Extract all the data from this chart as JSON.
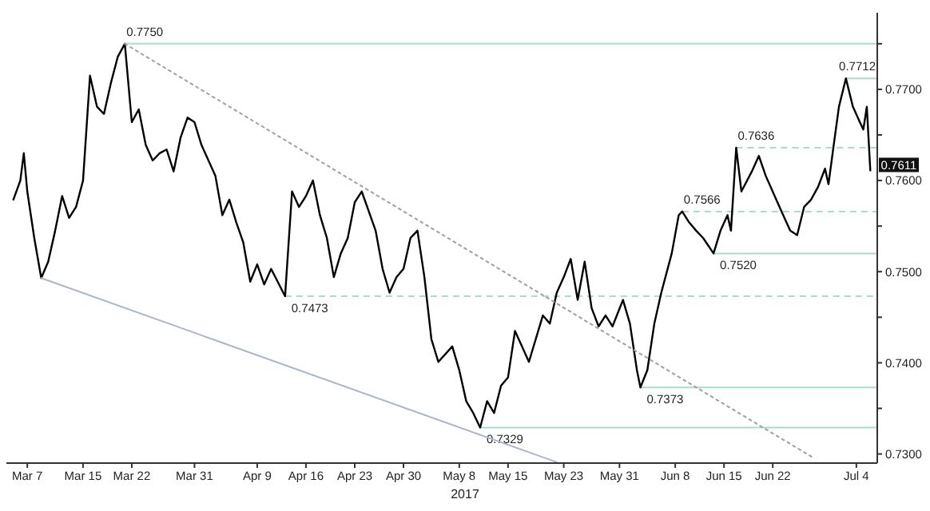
{
  "chart_data": {
    "type": "line",
    "xlim": [
      "2017-03-04",
      "2017-07-07"
    ],
    "ylim": [
      0.729,
      0.7784
    ],
    "xticks": [
      {
        "value": "2017-03-07",
        "label": "Mar 7"
      },
      {
        "value": "2017-03-15",
        "label": "Mar 15"
      },
      {
        "value": "2017-03-22",
        "label": "Mar 22"
      },
      {
        "value": "2017-03-31",
        "label": "Mar 31"
      },
      {
        "value": "2017-04-09",
        "label": "Apr 9"
      },
      {
        "value": "2017-04-16",
        "label": "Apr 16"
      },
      {
        "value": "2017-04-23",
        "label": "Apr 23"
      },
      {
        "value": "2017-04-30",
        "label": "Apr 30"
      },
      {
        "value": "2017-05-08",
        "label": "May 8"
      },
      {
        "value": "2017-05-15",
        "label": "May 15"
      },
      {
        "value": "2017-05-23",
        "label": "May 23"
      },
      {
        "value": "2017-05-31",
        "label": "May 31"
      },
      {
        "value": "2017-06-08",
        "label": "Jun 8"
      },
      {
        "value": "2017-06-15",
        "label": "Jun 15"
      },
      {
        "value": "2017-06-22",
        "label": "Jun 22"
      },
      {
        "value": "2017-07-04",
        "label": "Jul 4"
      }
    ],
    "yticks": [
      {
        "value": 0.73,
        "label": "0.7300"
      },
      {
        "value": 0.735,
        "label": null
      },
      {
        "value": 0.74,
        "label": "0.7400"
      },
      {
        "value": 0.745,
        "label": null
      },
      {
        "value": 0.75,
        "label": "0.7500"
      },
      {
        "value": 0.755,
        "label": null
      },
      {
        "value": 0.76,
        "label": "0.7600"
      },
      {
        "value": 0.765,
        "label": null
      },
      {
        "value": 0.77,
        "label": "0.7700"
      },
      {
        "value": 0.775,
        "label": null
      }
    ],
    "series": [
      {
        "color": "#000000",
        "x": [
          "2017-03-05",
          "2017-03-06",
          "2017-03-06T12:00",
          "2017-03-07",
          "2017-03-08",
          "2017-03-09",
          "2017-03-10",
          "2017-03-11",
          "2017-03-12",
          "2017-03-13",
          "2017-03-14",
          "2017-03-15",
          "2017-03-16",
          "2017-03-17",
          "2017-03-18",
          "2017-03-19",
          "2017-03-20",
          "2017-03-21",
          "2017-03-22",
          "2017-03-23",
          "2017-03-24",
          "2017-03-25",
          "2017-03-26",
          "2017-03-27",
          "2017-03-28",
          "2017-03-29",
          "2017-03-30",
          "2017-03-31",
          "2017-04-01",
          "2017-04-03",
          "2017-04-04",
          "2017-04-05",
          "2017-04-06",
          "2017-04-07",
          "2017-04-08",
          "2017-04-09",
          "2017-04-10",
          "2017-04-11",
          "2017-04-13",
          "2017-04-14",
          "2017-04-15",
          "2017-04-16",
          "2017-04-17",
          "2017-04-18",
          "2017-04-19",
          "2017-04-20",
          "2017-04-21",
          "2017-04-22",
          "2017-04-23",
          "2017-04-24",
          "2017-04-26",
          "2017-04-27",
          "2017-04-28",
          "2017-04-29",
          "2017-04-30",
          "2017-05-01",
          "2017-05-02",
          "2017-05-03",
          "2017-05-04",
          "2017-05-05",
          "2017-05-07",
          "2017-05-08",
          "2017-05-09",
          "2017-05-10",
          "2017-05-11",
          "2017-05-12",
          "2017-05-13",
          "2017-05-14",
          "2017-05-15",
          "2017-05-16",
          "2017-05-17",
          "2017-05-18",
          "2017-05-20",
          "2017-05-21",
          "2017-05-22",
          "2017-05-23",
          "2017-05-24",
          "2017-05-25",
          "2017-05-26",
          "2017-05-27",
          "2017-05-28",
          "2017-05-29",
          "2017-05-30",
          "2017-05-31T12:00",
          "2017-06-01T12:00",
          "2017-06-02T12:00",
          "2017-06-03",
          "2017-06-04",
          "2017-06-05",
          "2017-06-06",
          "2017-06-07T12:00",
          "2017-06-08T12:00",
          "2017-06-09",
          "2017-06-10",
          "2017-06-11",
          "2017-06-12",
          "2017-06-13T12:00",
          "2017-06-14T12:00",
          "2017-06-15T12:00",
          "2017-06-16",
          "2017-06-16T18:00",
          "2017-06-17T12:00",
          "2017-06-19",
          "2017-06-20",
          "2017-06-21",
          "2017-06-22T12:00",
          "2017-06-23T12:00",
          "2017-06-24T12:00",
          "2017-06-25T12:00",
          "2017-06-26T12:00",
          "2017-06-27T12:00",
          "2017-06-28T12:00",
          "2017-06-29T12:00",
          "2017-06-30",
          "2017-06-30T18:00",
          "2017-07-01T12:00",
          "2017-07-02T12:00",
          "2017-07-03T12:00",
          "2017-07-04T12:00",
          "2017-07-05",
          "2017-07-05T12:00",
          "2017-07-06"
        ],
        "values": [
          0.7579,
          0.76,
          0.763,
          0.7588,
          0.7537,
          0.7493,
          0.7511,
          0.7545,
          0.7583,
          0.7559,
          0.7571,
          0.76,
          0.7715,
          0.7681,
          0.7673,
          0.7707,
          0.7736,
          0.775,
          0.7664,
          0.7678,
          0.7639,
          0.7622,
          0.763,
          0.7634,
          0.761,
          0.7647,
          0.7669,
          0.7664,
          0.7639,
          0.7605,
          0.7562,
          0.7579,
          0.7554,
          0.7532,
          0.7489,
          0.7508,
          0.7486,
          0.7503,
          0.7473,
          0.7588,
          0.7571,
          0.7583,
          0.76,
          0.7562,
          0.7537,
          0.7494,
          0.752,
          0.7537,
          0.7576,
          0.7588,
          0.7545,
          0.7503,
          0.7477,
          0.7494,
          0.7503,
          0.7537,
          0.7545,
          0.7494,
          0.7426,
          0.7401,
          0.7418,
          0.7392,
          0.7358,
          0.7345,
          0.7329,
          0.7358,
          0.7345,
          0.7375,
          0.7384,
          0.7435,
          0.7418,
          0.7401,
          0.7452,
          0.7443,
          0.7477,
          0.7494,
          0.7514,
          0.7469,
          0.7511,
          0.746,
          0.744,
          0.7452,
          0.744,
          0.7469,
          0.7443,
          0.7392,
          0.7373,
          0.7392,
          0.7443,
          0.7477,
          0.752,
          0.7562,
          0.7566,
          0.7554,
          0.7545,
          0.7537,
          0.752,
          0.7545,
          0.7562,
          0.7545,
          0.7636,
          0.7588,
          0.761,
          0.7627,
          0.7605,
          0.7579,
          0.7562,
          0.7545,
          0.754,
          0.7571,
          0.7579,
          0.7593,
          0.7613,
          0.7596,
          0.7639,
          0.7681,
          0.7712,
          0.7681,
          0.7664,
          0.7656,
          0.7681,
          0.7611
        ]
      },
      {
        "type": "line",
        "color": "#a0a0a0",
        "line_style": "dotted",
        "x": [
          "2017-03-21",
          "2017-06-28"
        ],
        "values": [
          0.775,
          0.7295
        ]
      },
      {
        "type": "line",
        "color": "#a8b8c8",
        "line_style": "solid",
        "x": [
          "2017-03-09",
          "2017-05-22"
        ],
        "values": [
          0.7493,
          0.7291
        ]
      }
    ],
    "ref_lines": [
      {
        "axis": "y",
        "value": 0.775,
        "label": "0.7750",
        "color": "#a8dcd0",
        "line_style": "solid"
      },
      {
        "axis": "y",
        "value": 0.7712,
        "label": "0.7712",
        "color": "#a8dcd0",
        "line_style": "solid"
      },
      {
        "axis": "y",
        "value": 0.7636,
        "label": "0.7636",
        "color": "#a8dcd0",
        "line_style": "dashed"
      },
      {
        "axis": "y",
        "value": 0.7566,
        "label": "0.7566",
        "color": "#a8dcd0",
        "line_style": "dashed"
      },
      {
        "axis": "y",
        "value": 0.752,
        "label": "0.7520",
        "color": "#a8dcd0",
        "line_style": "solid"
      },
      {
        "axis": "y",
        "value": 0.7473,
        "label": "0.7473",
        "color": "#a8dcd0",
        "line_style": "dashed"
      },
      {
        "axis": "y",
        "value": 0.7373,
        "label": "0.7373",
        "color": "#a8dcd0",
        "line_style": "solid"
      },
      {
        "axis": "y",
        "value": 0.7329,
        "label": "0.7329",
        "color": "#a8dcd0",
        "line_style": "solid"
      }
    ],
    "annotations": [
      "2017",
      "0.7611"
    ]
  }
}
